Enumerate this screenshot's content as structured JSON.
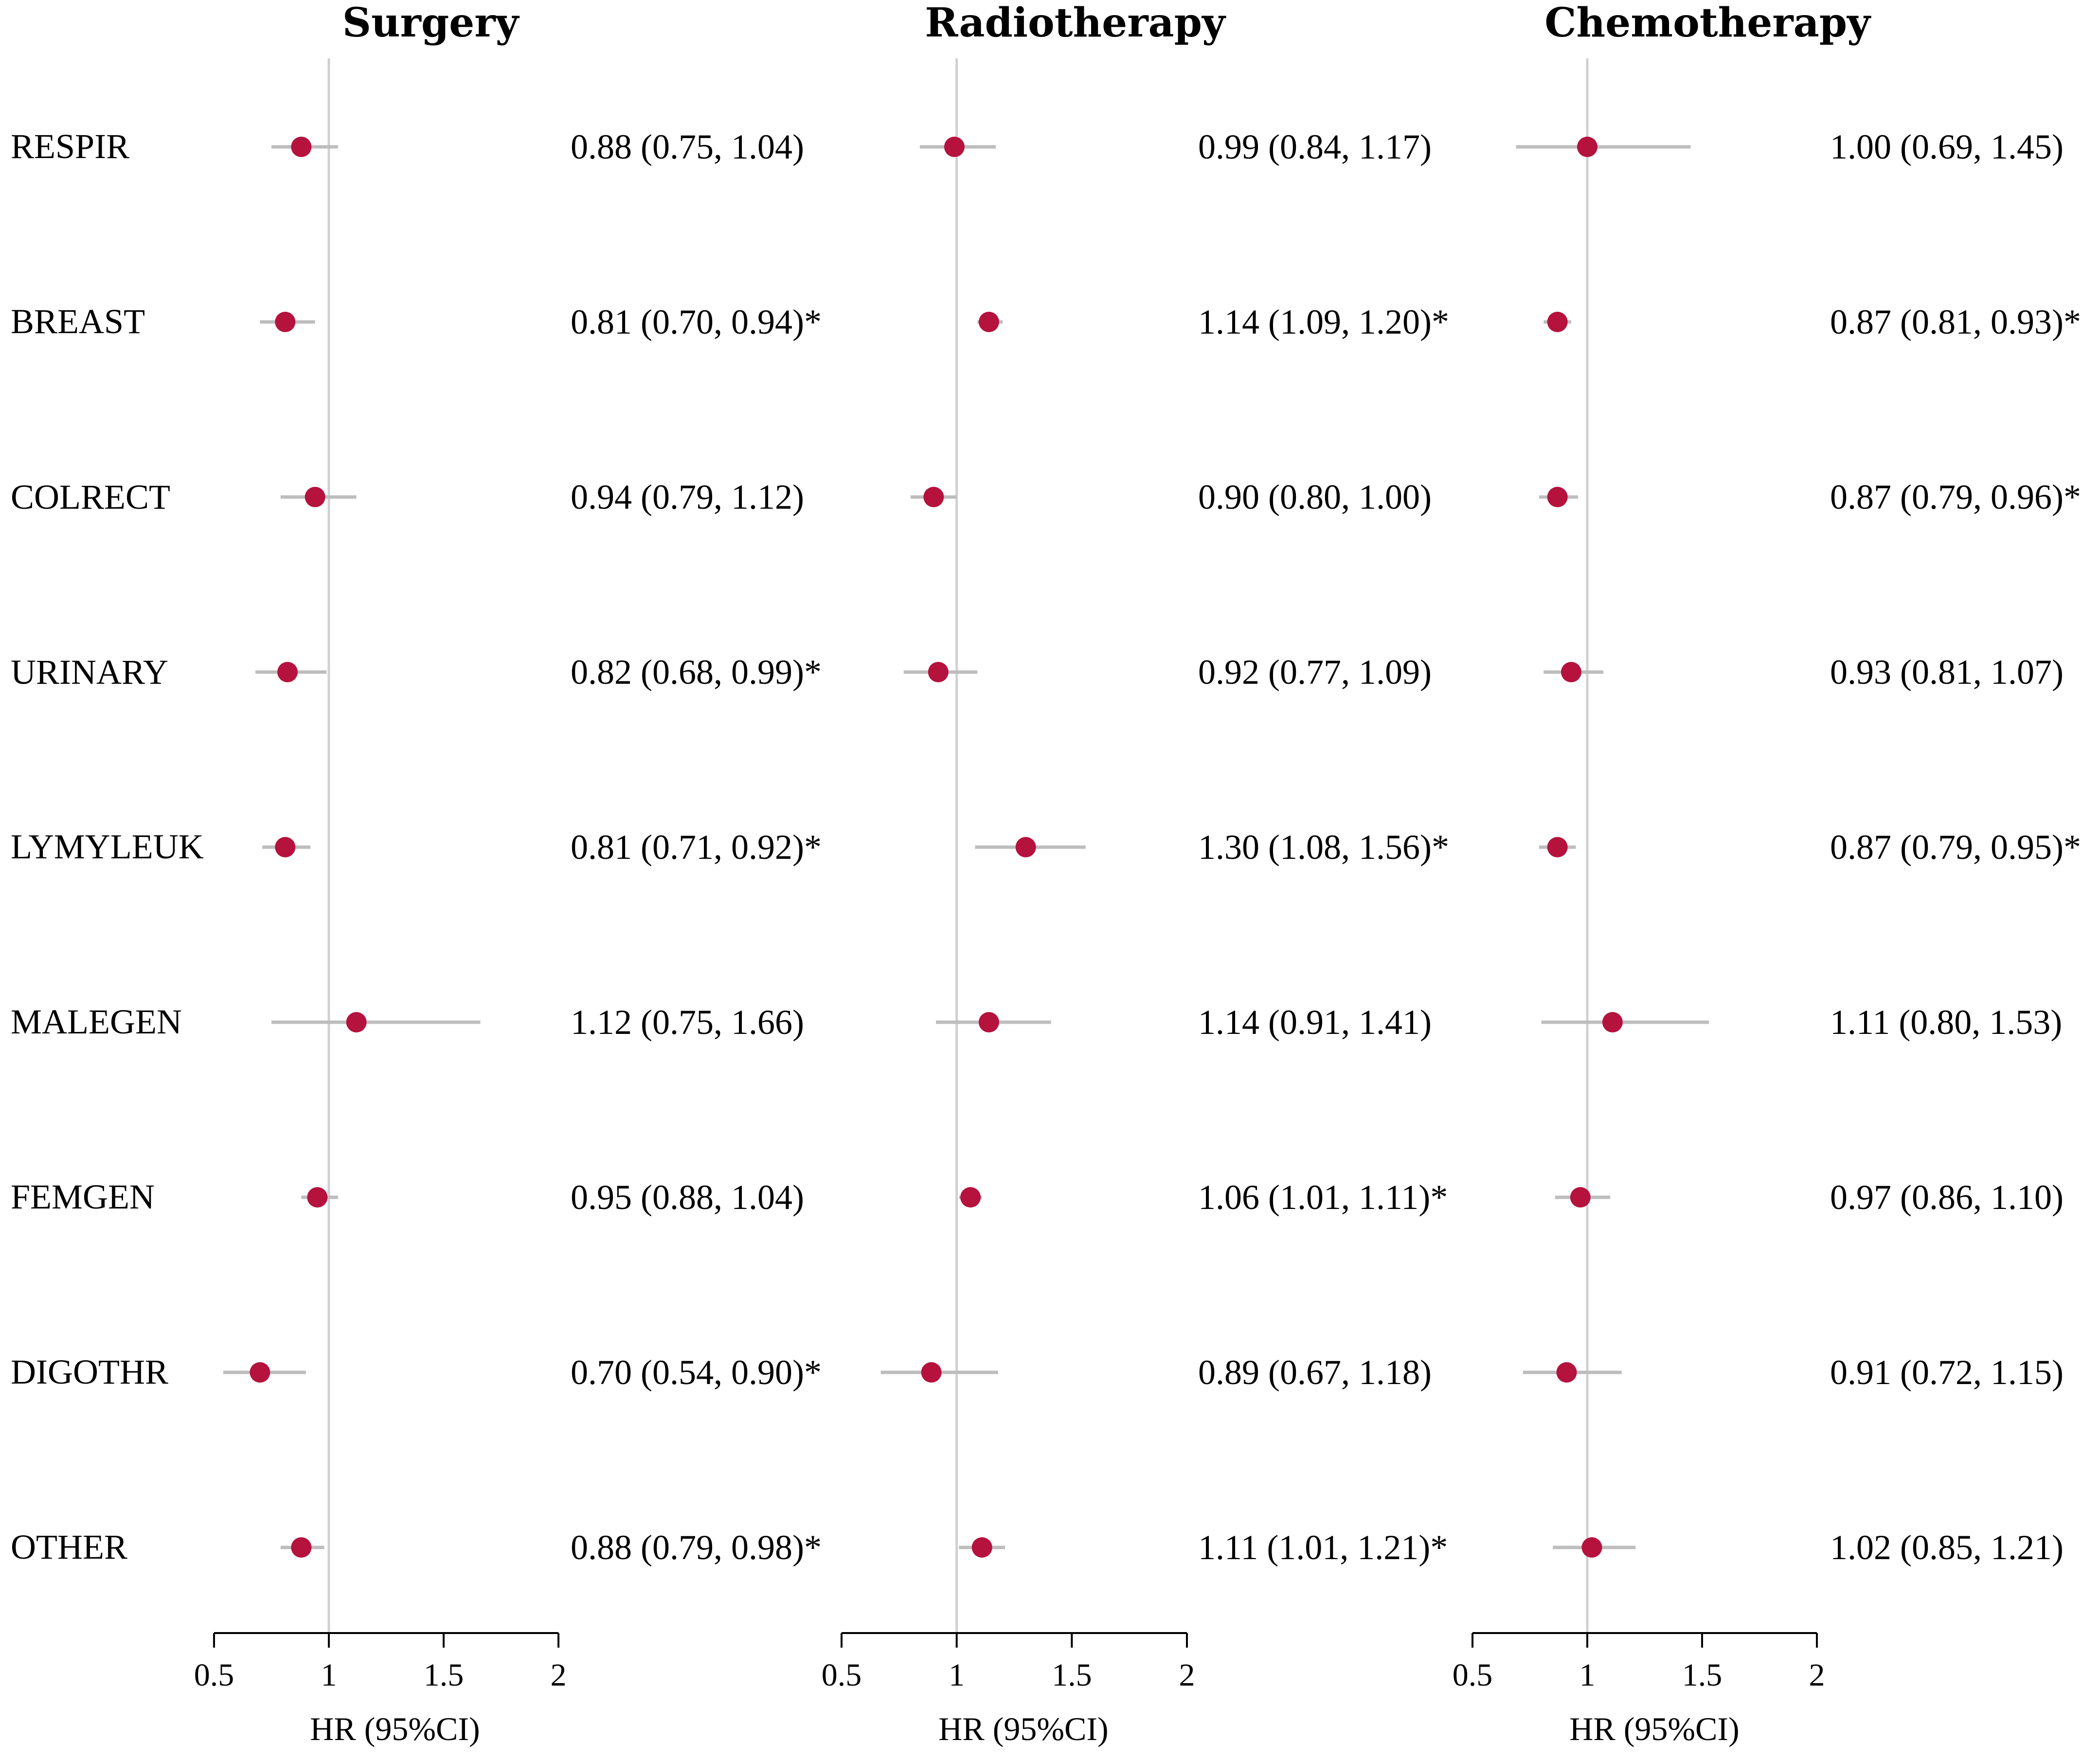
{
  "colors": {
    "point": "#b5123e",
    "ci": "#bdbdbd",
    "refline": "#d0d0d0",
    "axis": "#000000"
  },
  "chart_data": {
    "type": "forest",
    "rows": [
      "RESPIR",
      "BREAST",
      "COLRECT",
      "URINARY",
      "LYMYLEUK",
      "MALEGEN",
      "FEMGEN",
      "DIGOTHR",
      "OTHER"
    ],
    "panels": [
      {
        "title": "Surgery",
        "xlabel": "HR (95%CI)",
        "xlim": [
          0.5,
          2
        ],
        "ticks": [
          0.5,
          1,
          1.5,
          2
        ],
        "tick_labels": [
          "0.5",
          "1",
          "1.5",
          "2"
        ],
        "reference": 1,
        "points": [
          {
            "hr": 0.88,
            "lo": 0.75,
            "hi": 1.04,
            "label": "0.88 (0.75, 1.04)"
          },
          {
            "hr": 0.81,
            "lo": 0.7,
            "hi": 0.94,
            "label": "0.81 (0.70, 0.94)*"
          },
          {
            "hr": 0.94,
            "lo": 0.79,
            "hi": 1.12,
            "label": "0.94 (0.79, 1.12)"
          },
          {
            "hr": 0.82,
            "lo": 0.68,
            "hi": 0.99,
            "label": "0.82 (0.68, 0.99)*"
          },
          {
            "hr": 0.81,
            "lo": 0.71,
            "hi": 0.92,
            "label": "0.81 (0.71, 0.92)*"
          },
          {
            "hr": 1.12,
            "lo": 0.75,
            "hi": 1.66,
            "label": "1.12 (0.75, 1.66)"
          },
          {
            "hr": 0.95,
            "lo": 0.88,
            "hi": 1.04,
            "label": "0.95 (0.88, 1.04)"
          },
          {
            "hr": 0.7,
            "lo": 0.54,
            "hi": 0.9,
            "label": "0.70 (0.54, 0.90)*"
          },
          {
            "hr": 0.88,
            "lo": 0.79,
            "hi": 0.98,
            "label": "0.88 (0.79, 0.98)*"
          }
        ]
      },
      {
        "title": "Radiotherapy",
        "xlabel": "HR (95%CI)",
        "xlim": [
          0.5,
          2
        ],
        "ticks": [
          0.5,
          1,
          1.5,
          2
        ],
        "tick_labels": [
          "0.5",
          "1",
          "1.5",
          "2"
        ],
        "reference": 1,
        "points": [
          {
            "hr": 0.99,
            "lo": 0.84,
            "hi": 1.17,
            "label": "0.99 (0.84, 1.17)"
          },
          {
            "hr": 1.14,
            "lo": 1.09,
            "hi": 1.2,
            "label": "1.14 (1.09, 1.20)*"
          },
          {
            "hr": 0.9,
            "lo": 0.8,
            "hi": 1.0,
            "label": "0.90 (0.80, 1.00)"
          },
          {
            "hr": 0.92,
            "lo": 0.77,
            "hi": 1.09,
            "label": "0.92 (0.77, 1.09)"
          },
          {
            "hr": 1.3,
            "lo": 1.08,
            "hi": 1.56,
            "label": "1.30 (1.08, 1.56)*"
          },
          {
            "hr": 1.14,
            "lo": 0.91,
            "hi": 1.41,
            "label": "1.14 (0.91, 1.41)"
          },
          {
            "hr": 1.06,
            "lo": 1.01,
            "hi": 1.11,
            "label": "1.06 (1.01, 1.11)*"
          },
          {
            "hr": 0.89,
            "lo": 0.67,
            "hi": 1.18,
            "label": "0.89 (0.67, 1.18)"
          },
          {
            "hr": 1.11,
            "lo": 1.01,
            "hi": 1.21,
            "label": "1.11 (1.01, 1.21)*"
          }
        ]
      },
      {
        "title": "Chemotherapy",
        "xlabel": "HR (95%CI)",
        "xlim": [
          0.5,
          2
        ],
        "ticks": [
          0.5,
          1,
          1.5,
          2
        ],
        "tick_labels": [
          "0.5",
          "1",
          "1.5",
          "2"
        ],
        "reference": 1,
        "points": [
          {
            "hr": 1.0,
            "lo": 0.69,
            "hi": 1.45,
            "label": "1.00 (0.69, 1.45)"
          },
          {
            "hr": 0.87,
            "lo": 0.81,
            "hi": 0.93,
            "label": "0.87 (0.81, 0.93)*"
          },
          {
            "hr": 0.87,
            "lo": 0.79,
            "hi": 0.96,
            "label": "0.87 (0.79, 0.96)*"
          },
          {
            "hr": 0.93,
            "lo": 0.81,
            "hi": 1.07,
            "label": "0.93 (0.81, 1.07)"
          },
          {
            "hr": 0.87,
            "lo": 0.79,
            "hi": 0.95,
            "label": "0.87 (0.79, 0.95)*"
          },
          {
            "hr": 1.11,
            "lo": 0.8,
            "hi": 1.53,
            "label": "1.11 (0.80, 1.53)"
          },
          {
            "hr": 0.97,
            "lo": 0.86,
            "hi": 1.1,
            "label": "0.97 (0.86, 1.10)"
          },
          {
            "hr": 0.91,
            "lo": 0.72,
            "hi": 1.15,
            "label": "0.91 (0.72, 1.15)"
          },
          {
            "hr": 1.02,
            "lo": 0.85,
            "hi": 1.21,
            "label": "1.02 (0.85, 1.21)"
          }
        ]
      }
    ]
  }
}
